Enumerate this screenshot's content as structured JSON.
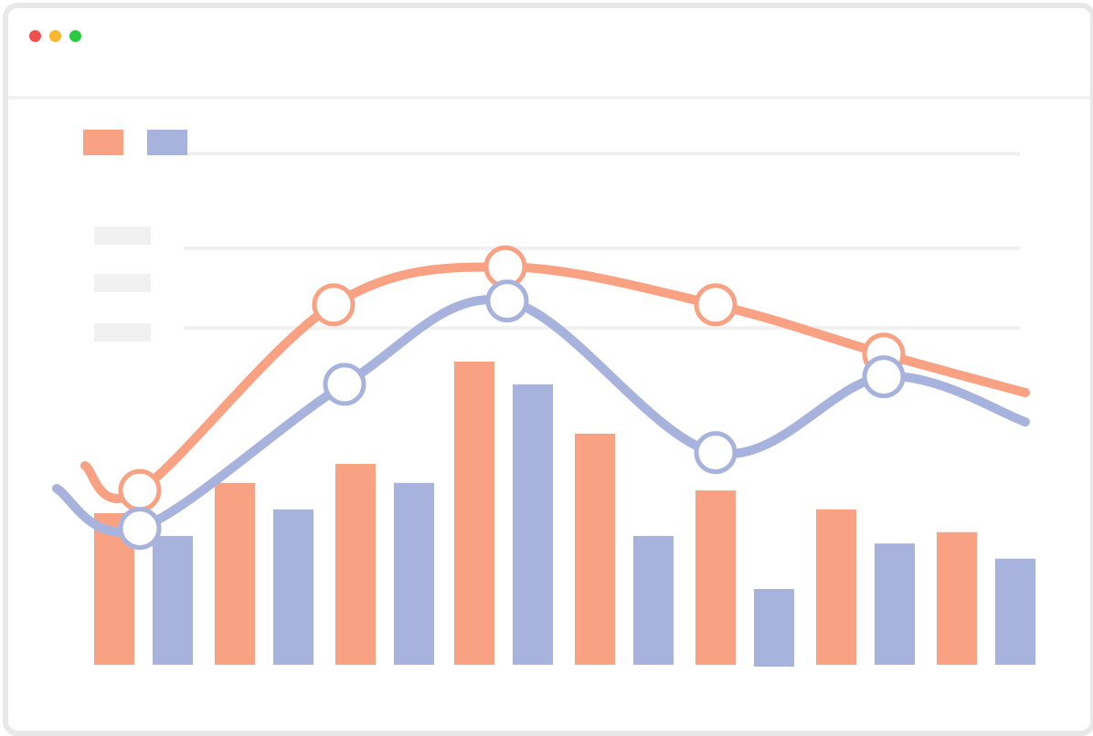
{
  "window": {
    "controls": [
      "close-dot",
      "minimize-dot",
      "maximize-dot"
    ],
    "control_colors": [
      "#f25050",
      "#f9b72c",
      "#2bc940"
    ]
  },
  "chart_data": [
    {
      "type": "line",
      "series": [
        {
          "color": "#f9a283",
          "values": [
            46,
            95,
            105,
            95,
            82,
            78
          ]
        },
        {
          "color": "#a8b3dd",
          "values": [
            36,
            74,
            96,
            56,
            76,
            64
          ]
        }
      ],
      "ylim": [
        0,
        135
      ],
      "grid": true,
      "legend": "top-left"
    },
    {
      "type": "bar",
      "series": [
        {
          "color": "#f9a283",
          "values": [
            40,
            48,
            53,
            80,
            61,
            46,
            41,
            35
          ]
        },
        {
          "color": "#a8b3dd",
          "values": [
            34,
            41,
            48,
            74,
            34,
            20,
            32,
            28
          ]
        }
      ],
      "ylim": [
        0,
        135
      ]
    }
  ],
  "colors": {
    "series_a": "#f9a283",
    "series_b": "#a8b3dd",
    "grid": "#f0f0f0",
    "placeholder": "#f1f1f1"
  }
}
